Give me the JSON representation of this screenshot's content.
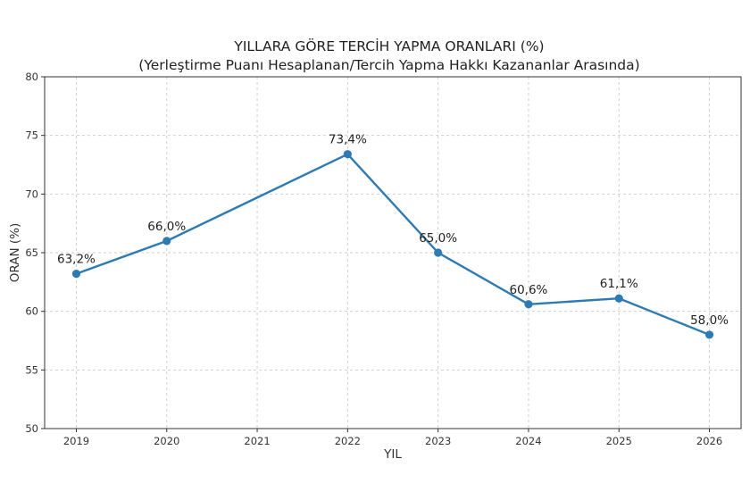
{
  "chart_data": {
    "type": "line",
    "title": "YILLARA GÖRE TERCİH YAPMA ORANLARI (%)",
    "subtitle": "(Yerleştirme Puanı Hesaplanan/Tercih Yapma Hakkı Kazananlar Arasında)",
    "xlabel": "YIL",
    "ylabel": "ORAN (%)",
    "xlim": [
      2018.65,
      2026.35
    ],
    "ylim": [
      50,
      80
    ],
    "x_ticks": [
      2019,
      2020,
      2021,
      2022,
      2023,
      2024,
      2025,
      2026
    ],
    "y_ticks": [
      50,
      55,
      60,
      65,
      70,
      75,
      80
    ],
    "grid": true,
    "color": "#2e7bb4",
    "series": [
      {
        "points": [
          {
            "x": 2019,
            "y": 63.2,
            "label": "63,2%"
          },
          {
            "x": 2020,
            "y": 66.0,
            "label": "66,0%"
          },
          {
            "x": 2022,
            "y": 73.4,
            "label": "73,4%"
          },
          {
            "x": 2023,
            "y": 65.0,
            "label": "65,0%"
          },
          {
            "x": 2024,
            "y": 60.6,
            "label": "60,6%"
          },
          {
            "x": 2025,
            "y": 61.1,
            "label": "61,1%"
          },
          {
            "x": 2026,
            "y": 58.0,
            "label": "58,0%"
          }
        ]
      }
    ]
  }
}
